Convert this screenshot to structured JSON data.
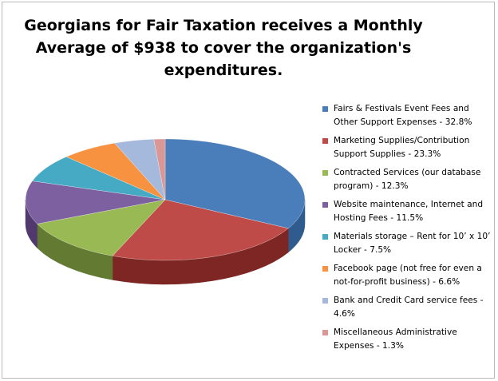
{
  "chart_data": {
    "type": "pie",
    "title_lines": [
      "Georgians for Fair Taxation receives a Monthly",
      "Average of  $938 to cover the organization's",
      "expenditures."
    ],
    "slices": [
      {
        "label": "Fairs & Festivals Event Fees and Other Support Expenses - 32.8%",
        "value": 32.8,
        "color": "#4a7ebb",
        "side": "#2f5b8f"
      },
      {
        "label": "Marketing Supplies/Contribution Support Supplies - 23.3%",
        "value": 23.3,
        "color": "#be4b48",
        "side": "#7d2624"
      },
      {
        "label": "Contracted Services (our database program) - 12.3%",
        "value": 12.3,
        "color": "#98b954",
        "side": "#627a31"
      },
      {
        "label": "Website maintenance, Internet and Hosting Fees - 11.5%",
        "value": 11.5,
        "color": "#7d60a0",
        "side": "#51396d"
      },
      {
        "label": "Materials storage – Rent for 10’ x 10’ Locker - 7.5%",
        "value": 7.5,
        "color": "#46aac5",
        "side": "#2a7387"
      },
      {
        "label": "Facebook page (not free for even a not-for-profit business) - 6.6%",
        "value": 6.6,
        "color": "#f69240",
        "side": "#b5621f"
      },
      {
        "label": "Bank and Credit Card service fees - 4.6%",
        "value": 4.6,
        "color": "#a5b9dd",
        "side": "#6f84ad"
      },
      {
        "label": "Miscellaneous Administrative Expenses - 1.3%",
        "value": 1.3,
        "color": "#d99795",
        "side": "#a8605e"
      }
    ],
    "legend_position": "right"
  }
}
